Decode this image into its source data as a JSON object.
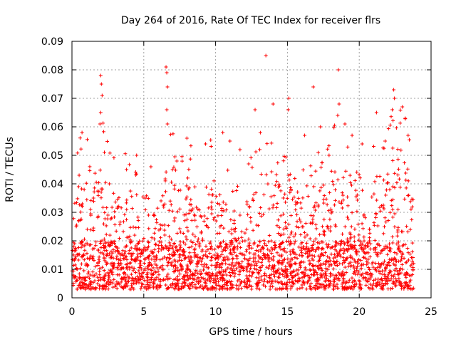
{
  "chart_data": {
    "type": "scatter",
    "title": "Day 264 of 2016, Rate Of TEC Index for receiver flrs",
    "xlabel": "GPS time / hours",
    "ylabel": "ROTI / TECUs",
    "xlim": [
      0,
      25
    ],
    "ylim": [
      0,
      0.09
    ],
    "x_ticks": [
      0,
      5,
      10,
      15,
      20,
      25
    ],
    "x_tick_labels": [
      "0",
      "5",
      "10",
      "15",
      "20",
      "25"
    ],
    "y_ticks": [
      0,
      0.01,
      0.02,
      0.03,
      0.04,
      0.05,
      0.06,
      0.07,
      0.08,
      0.09
    ],
    "y_tick_labels": [
      "0",
      "0.01",
      "0.02",
      "0.03",
      "0.04",
      "0.05",
      "0.06",
      "0.07",
      "0.08",
      "0.09"
    ],
    "grid": true,
    "marker": "+",
    "series_color": "#ff0000",
    "data_extent_hours": [
      0,
      23.8
    ],
    "series": [
      {
        "name": "ROTI",
        "points": [
          [
            0.7,
            0.058
          ],
          [
            2.0,
            0.078
          ],
          [
            2.05,
            0.075
          ],
          [
            2.1,
            0.071
          ],
          [
            2.0,
            0.065
          ],
          [
            1.95,
            0.061
          ],
          [
            6.55,
            0.081
          ],
          [
            6.6,
            0.079
          ],
          [
            6.65,
            0.074
          ],
          [
            6.6,
            0.066
          ],
          [
            6.65,
            0.061
          ],
          [
            13.5,
            0.085
          ],
          [
            16.8,
            0.074
          ],
          [
            18.55,
            0.08
          ],
          [
            18.6,
            0.068
          ],
          [
            18.5,
            0.064
          ],
          [
            22.4,
            0.073
          ],
          [
            22.45,
            0.07
          ],
          [
            22.3,
            0.066
          ],
          [
            15.1,
            0.07
          ],
          [
            15.05,
            0.066
          ],
          [
            12.75,
            0.066
          ],
          [
            14.0,
            0.068
          ],
          [
            21.2,
            0.065
          ],
          [
            8.0,
            0.056
          ],
          [
            10.5,
            0.058
          ],
          [
            4.5,
            0.05
          ],
          [
            7.3,
            0.048
          ],
          [
            3.8,
            0.045
          ],
          [
            5.5,
            0.046
          ],
          [
            9.3,
            0.054
          ],
          [
            11.0,
            0.055
          ],
          [
            17.3,
            0.06
          ],
          [
            19.5,
            0.057
          ],
          [
            20.2,
            0.054
          ],
          [
            23.0,
            0.067
          ],
          [
            23.2,
            0.063
          ],
          [
            17.9,
            0.05
          ],
          [
            16.2,
            0.057
          ],
          [
            0.5,
            0.043
          ],
          [
            1.5,
            0.035
          ],
          [
            2.6,
            0.04
          ],
          [
            11.7,
            0.052
          ],
          [
            12.3,
            0.047
          ],
          [
            19.0,
            0.061
          ],
          [
            21.8,
            0.055
          ]
        ]
      }
    ]
  }
}
